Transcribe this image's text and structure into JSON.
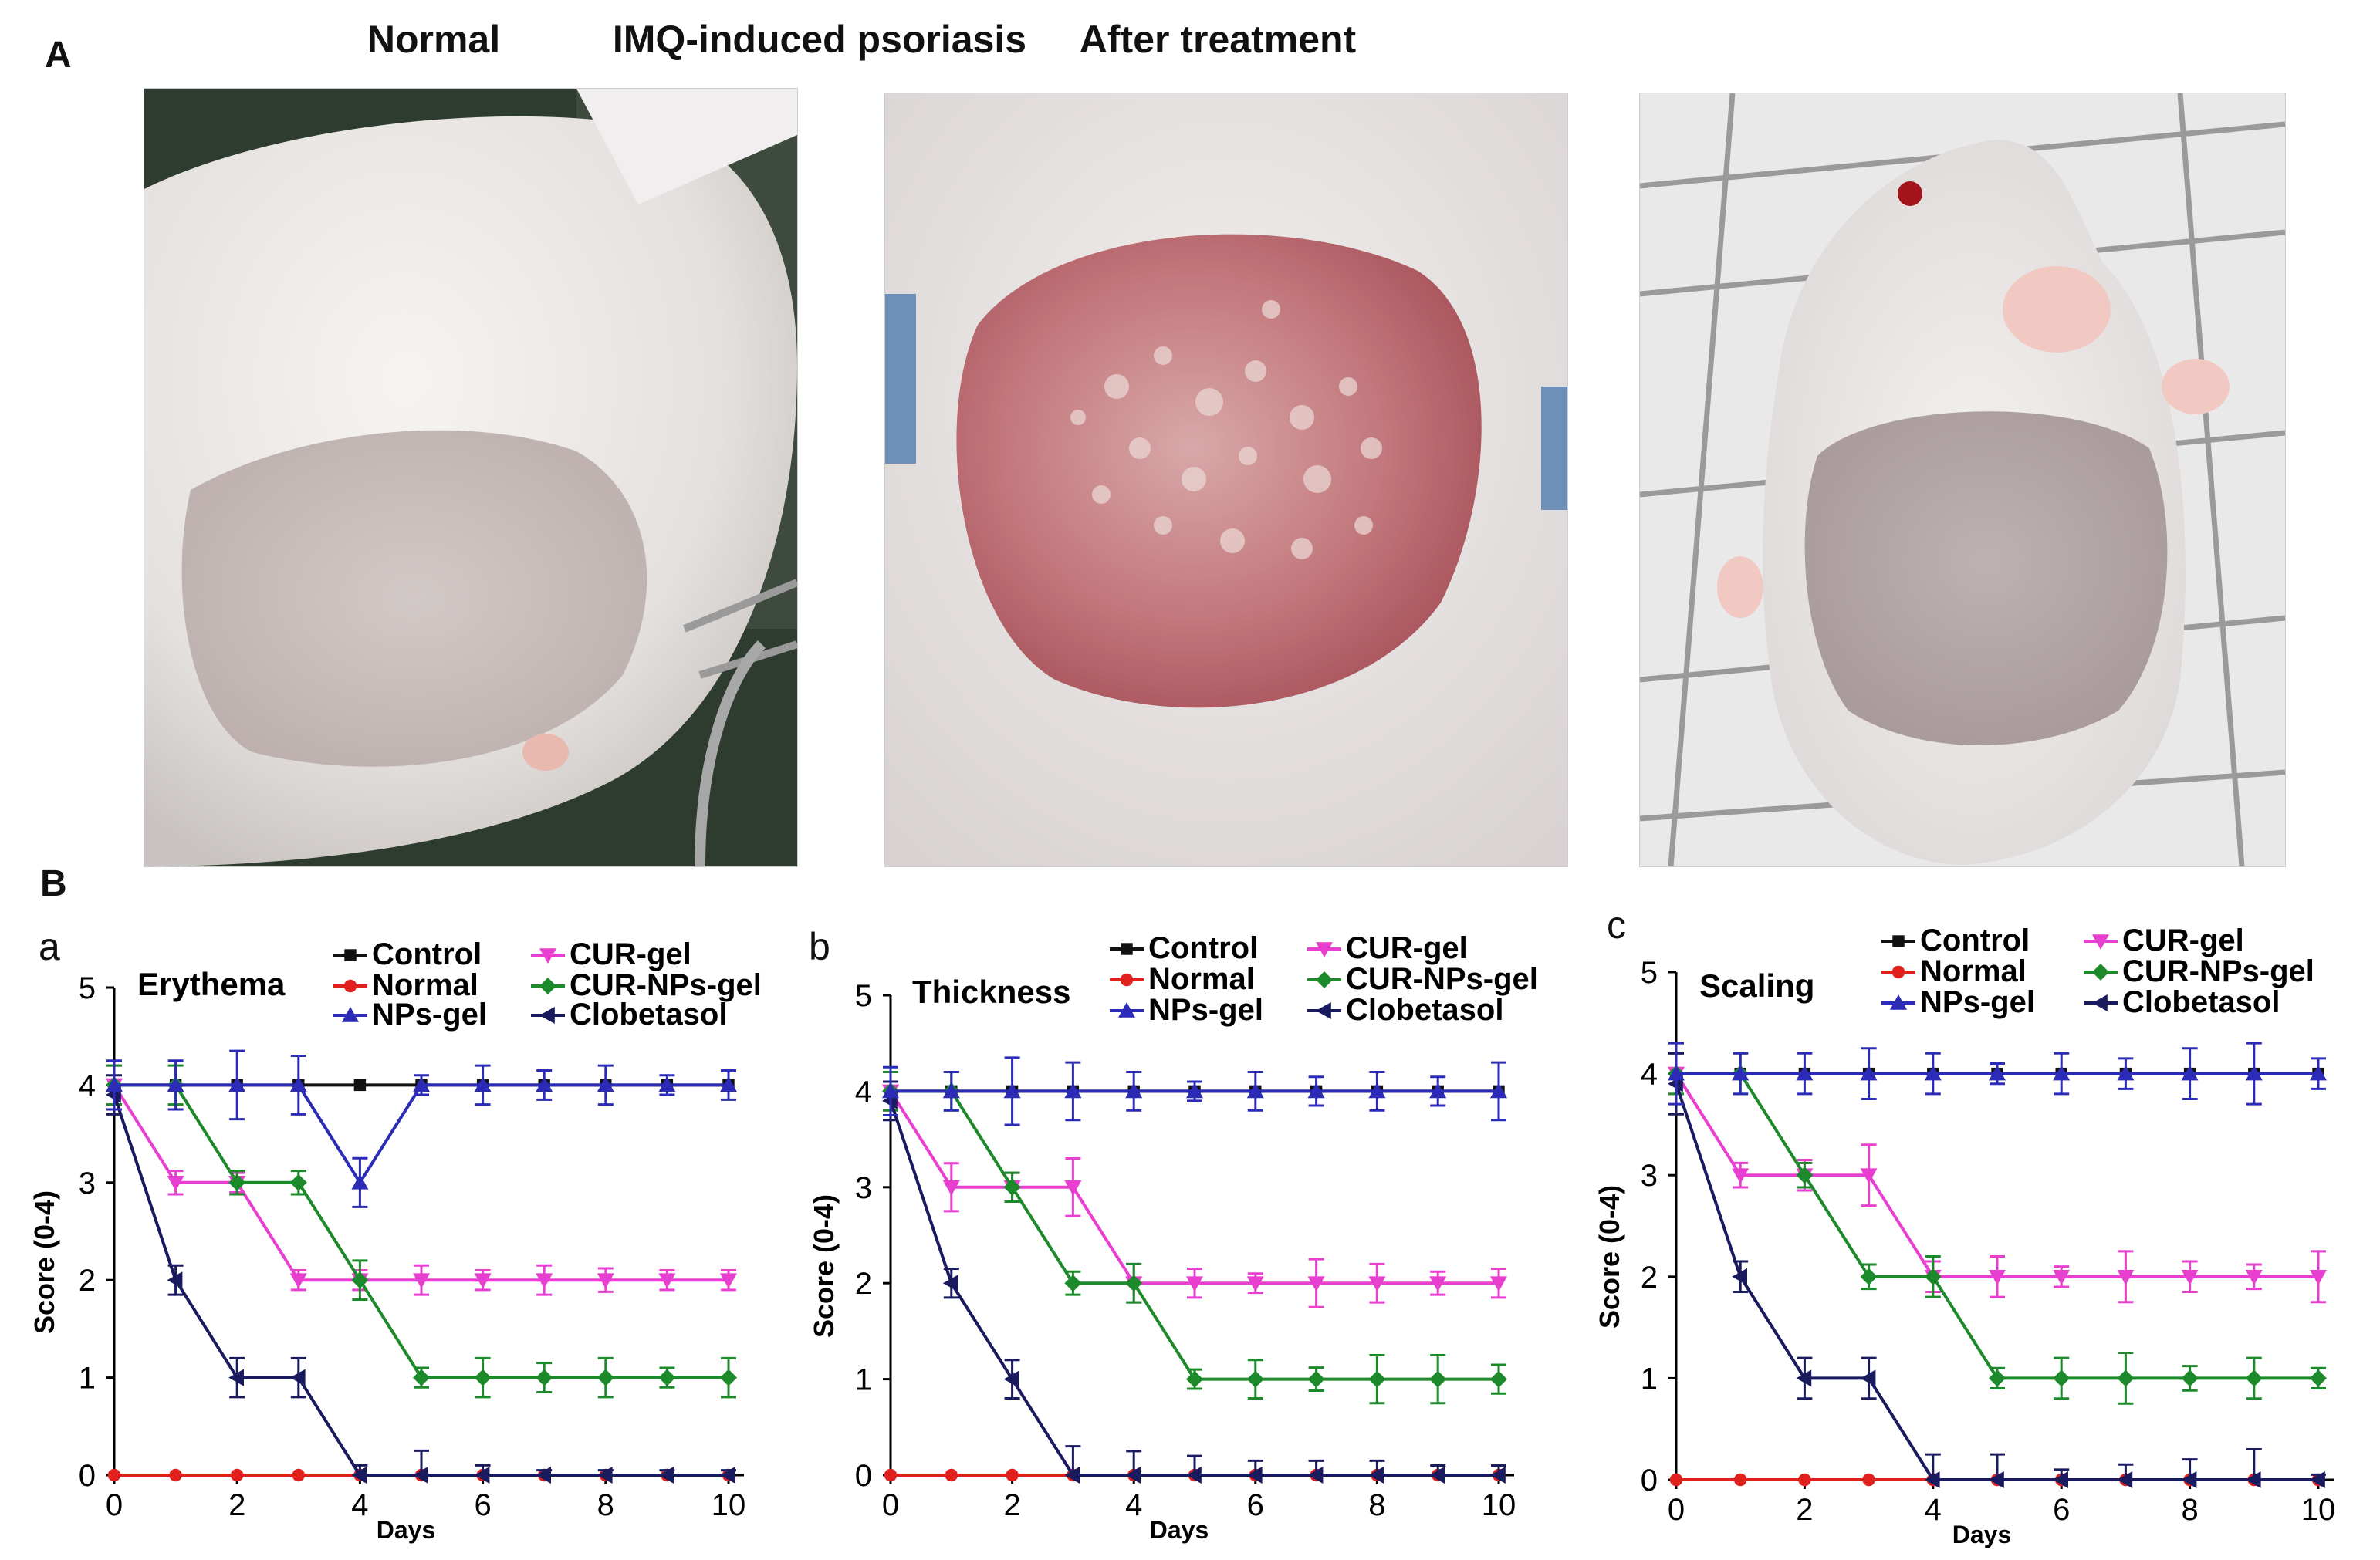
{
  "panel_a": {
    "letter": "A",
    "photos": [
      {
        "title": "Normal"
      },
      {
        "title": "IMQ-induced psoriasis"
      },
      {
        "title": "After treatment"
      }
    ]
  },
  "panel_b": {
    "letter": "B",
    "sub_letters": [
      "a",
      "b",
      "c"
    ]
  },
  "colors": {
    "Control": "#111111",
    "Normal": "#e0201c",
    "NPs-gel": "#2b2bb8",
    "CUR-gel": "#e83fd1",
    "CUR-NPs-gel": "#1c8a2a",
    "Clobetasol": "#1a1a5e"
  },
  "chart_data": [
    {
      "type": "line",
      "title": "Erythema",
      "xlabel": "Days",
      "ylabel": "Score (0-4)",
      "xlim": [
        0,
        10
      ],
      "ylim": [
        0,
        5
      ],
      "xticks": [
        0,
        2,
        4,
        6,
        8,
        10
      ],
      "yticks": [
        0,
        1,
        2,
        3,
        4,
        5
      ],
      "legend": [
        "Control",
        "Normal",
        "NPs-gel",
        "CUR-gel",
        "CUR-NPs-gel",
        "Clobetasol"
      ],
      "series": [
        {
          "name": "Control",
          "x": [
            0,
            1,
            2,
            3,
            4,
            5,
            6,
            7,
            8,
            9,
            10
          ],
          "values": [
            4,
            4,
            4,
            4,
            4,
            4,
            4,
            4,
            4,
            4,
            4
          ]
        },
        {
          "name": "Normal",
          "x": [
            0,
            1,
            2,
            3,
            4,
            5,
            6,
            7,
            8,
            9,
            10
          ],
          "values": [
            0,
            0,
            0,
            0,
            0,
            0,
            0,
            0,
            0,
            0,
            0
          ]
        },
        {
          "name": "NPs-gel",
          "x": [
            0,
            1,
            2,
            3,
            4,
            5,
            6,
            7,
            8,
            9,
            10
          ],
          "values": [
            4,
            4,
            4,
            4,
            3,
            4,
            4,
            4,
            4,
            4,
            4
          ],
          "err": [
            0.25,
            0.25,
            0.35,
            0.3,
            0.25,
            0.1,
            0.2,
            0.15,
            0.2,
            0.1,
            0.15
          ]
        },
        {
          "name": "CUR-gel",
          "x": [
            0,
            1,
            2,
            3,
            4,
            5,
            6,
            7,
            8,
            9,
            10
          ],
          "values": [
            4,
            3,
            3,
            2,
            2,
            2,
            2,
            2,
            2,
            2,
            2
          ],
          "err": [
            0.2,
            0.12,
            0.1,
            0.1,
            0.1,
            0.15,
            0.1,
            0.15,
            0.12,
            0.1,
            0.1
          ]
        },
        {
          "name": "CUR-NPs-gel",
          "x": [
            0,
            1,
            2,
            3,
            4,
            5,
            6,
            7,
            8,
            9,
            10
          ],
          "values": [
            4,
            4,
            3,
            3,
            2,
            1,
            1,
            1,
            1,
            1,
            1
          ],
          "err": [
            0.2,
            0.2,
            0.12,
            0.12,
            0.2,
            0.1,
            0.2,
            0.15,
            0.2,
            0.1,
            0.2
          ]
        },
        {
          "name": "Clobetasol",
          "x": [
            0,
            1,
            2,
            3,
            4,
            5,
            6,
            7,
            8,
            9,
            10
          ],
          "values": [
            3.9,
            2,
            1,
            1,
            0,
            0,
            0,
            0,
            0,
            0,
            0
          ],
          "err": [
            0.2,
            0.15,
            0.2,
            0.2,
            0.1,
            0.25,
            0.1,
            0.05,
            0.05,
            0.05,
            0.05
          ]
        }
      ]
    },
    {
      "type": "line",
      "title": "Thickness",
      "xlabel": "Days",
      "ylabel": "Score (0-4)",
      "xlim": [
        0,
        10
      ],
      "ylim": [
        0,
        5
      ],
      "xticks": [
        0,
        2,
        4,
        6,
        8,
        10
      ],
      "yticks": [
        0,
        1,
        2,
        3,
        4,
        5
      ],
      "legend": [
        "Control",
        "Normal",
        "NPs-gel",
        "CUR-gel",
        "CUR-NPs-gel",
        "Clobetasol"
      ],
      "series": [
        {
          "name": "Control",
          "x": [
            0,
            1,
            2,
            3,
            4,
            5,
            6,
            7,
            8,
            9,
            10
          ],
          "values": [
            4,
            4,
            4,
            4,
            4,
            4,
            4,
            4,
            4,
            4,
            4
          ]
        },
        {
          "name": "Normal",
          "x": [
            0,
            1,
            2,
            3,
            4,
            5,
            6,
            7,
            8,
            9,
            10
          ],
          "values": [
            0,
            0,
            0,
            0,
            0,
            0,
            0,
            0,
            0,
            0,
            0
          ]
        },
        {
          "name": "NPs-gel",
          "x": [
            0,
            1,
            2,
            3,
            4,
            5,
            6,
            7,
            8,
            9,
            10
          ],
          "values": [
            4,
            4,
            4,
            4,
            4,
            4,
            4,
            4,
            4,
            4,
            4
          ],
          "err": [
            0.25,
            0.2,
            0.35,
            0.3,
            0.2,
            0.1,
            0.2,
            0.15,
            0.2,
            0.15,
            0.3
          ]
        },
        {
          "name": "CUR-gel",
          "x": [
            0,
            1,
            2,
            3,
            4,
            5,
            6,
            7,
            8,
            9,
            10
          ],
          "values": [
            4,
            3,
            3,
            3,
            2,
            2,
            2,
            2,
            2,
            2,
            2
          ],
          "err": [
            0.2,
            0.25,
            0.15,
            0.3,
            0.2,
            0.15,
            0.1,
            0.25,
            0.2,
            0.12,
            0.15
          ]
        },
        {
          "name": "CUR-NPs-gel",
          "x": [
            0,
            1,
            2,
            3,
            4,
            5,
            6,
            7,
            8,
            9,
            10
          ],
          "values": [
            4,
            4,
            3,
            2,
            2,
            1,
            1,
            1,
            1,
            1,
            1
          ],
          "err": [
            0.2,
            0.2,
            0.15,
            0.12,
            0.2,
            0.1,
            0.2,
            0.12,
            0.25,
            0.25,
            0.15
          ]
        },
        {
          "name": "Clobetasol",
          "x": [
            0,
            1,
            2,
            3,
            4,
            5,
            6,
            7,
            8,
            9,
            10
          ],
          "values": [
            3.9,
            2,
            1,
            0,
            0,
            0,
            0,
            0,
            0,
            0,
            0
          ],
          "err": [
            0.2,
            0.15,
            0.2,
            0.3,
            0.25,
            0.2,
            0.15,
            0.15,
            0.15,
            0.1,
            0.1
          ]
        }
      ]
    },
    {
      "type": "line",
      "title": "Scaling",
      "xlabel": "Days",
      "ylabel": "Score (0-4)",
      "xlim": [
        0,
        10
      ],
      "ylim": [
        0,
        5
      ],
      "xticks": [
        0,
        2,
        4,
        6,
        8,
        10
      ],
      "yticks": [
        0,
        1,
        2,
        3,
        4,
        5
      ],
      "legend": [
        "Control",
        "Normal",
        "NPs-gel",
        "CUR-gel",
        "CUR-NPs-gel",
        "Clobetasol"
      ],
      "series": [
        {
          "name": "Control",
          "x": [
            0,
            1,
            2,
            3,
            4,
            5,
            6,
            7,
            8,
            9,
            10
          ],
          "values": [
            4,
            4,
            4,
            4,
            4,
            4,
            4,
            4,
            4,
            4,
            4
          ]
        },
        {
          "name": "Normal",
          "x": [
            0,
            1,
            2,
            3,
            4,
            5,
            6,
            7,
            8,
            9,
            10
          ],
          "values": [
            0,
            0,
            0,
            0,
            0,
            0,
            0,
            0,
            0,
            0,
            0
          ]
        },
        {
          "name": "NPs-gel",
          "x": [
            0,
            1,
            2,
            3,
            4,
            5,
            6,
            7,
            8,
            9,
            10
          ],
          "values": [
            4,
            4,
            4,
            4,
            4,
            4,
            4,
            4,
            4,
            4,
            4
          ],
          "err": [
            0.3,
            0.2,
            0.2,
            0.25,
            0.2,
            0.1,
            0.2,
            0.15,
            0.25,
            0.3,
            0.15
          ]
        },
        {
          "name": "CUR-gel",
          "x": [
            0,
            1,
            2,
            3,
            4,
            5,
            6,
            7,
            8,
            9,
            10
          ],
          "values": [
            4,
            3,
            3,
            3,
            2,
            2,
            2,
            2,
            2,
            2,
            2
          ],
          "err": [
            0.2,
            0.12,
            0.15,
            0.3,
            0.15,
            0.2,
            0.1,
            0.25,
            0.15,
            0.12,
            0.25
          ]
        },
        {
          "name": "CUR-NPs-gel",
          "x": [
            0,
            1,
            2,
            3,
            4,
            5,
            6,
            7,
            8,
            9,
            10
          ],
          "values": [
            4,
            4,
            3,
            2,
            2,
            1,
            1,
            1,
            1,
            1,
            1
          ],
          "err": [
            0.2,
            0.2,
            0.12,
            0.12,
            0.2,
            0.1,
            0.2,
            0.25,
            0.12,
            0.2,
            0.1
          ]
        },
        {
          "name": "Clobetasol",
          "x": [
            0,
            1,
            2,
            3,
            4,
            5,
            6,
            7,
            8,
            9,
            10
          ],
          "values": [
            3.9,
            2,
            1,
            1,
            0,
            0,
            0,
            0,
            0,
            0,
            0
          ],
          "err": [
            0.3,
            0.15,
            0.2,
            0.2,
            0.25,
            0.25,
            0.1,
            0.15,
            0.2,
            0.3,
            0.05
          ]
        }
      ]
    }
  ]
}
